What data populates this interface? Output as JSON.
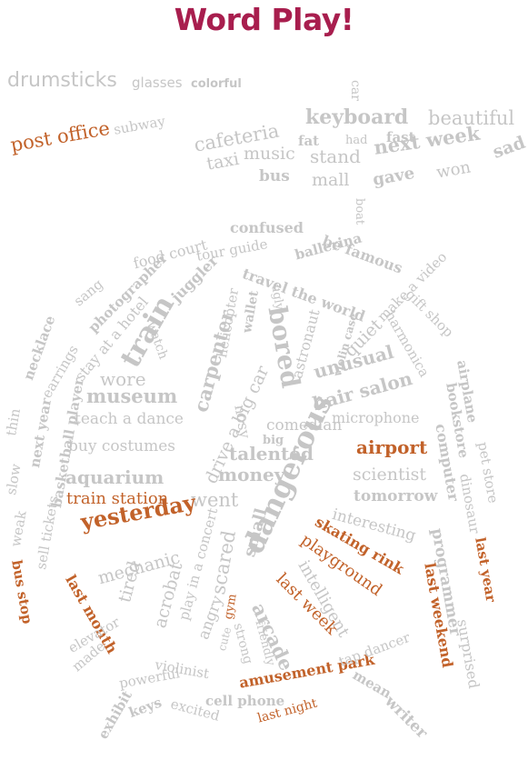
{
  "title": "Word Play!",
  "colors": {
    "title": "#a81e4e",
    "accent": "#c2622a",
    "gray": "#c6c6c6"
  },
  "words": [
    {
      "t": "drumsticks"
    },
    {
      "t": "glasses"
    },
    {
      "t": "colorful"
    },
    {
      "t": "post office"
    },
    {
      "t": "subway"
    },
    {
      "t": "car"
    },
    {
      "t": "keyboard"
    },
    {
      "t": "beautiful"
    },
    {
      "t": "cafeteria"
    },
    {
      "t": "fat"
    },
    {
      "t": "had"
    },
    {
      "t": "fast"
    },
    {
      "t": "music"
    },
    {
      "t": "stand"
    },
    {
      "t": "next week"
    },
    {
      "t": "sad"
    },
    {
      "t": "taxi"
    },
    {
      "t": "bus"
    },
    {
      "t": "mall"
    },
    {
      "t": "gave"
    },
    {
      "t": "won"
    },
    {
      "t": "boat"
    },
    {
      "t": "confused"
    },
    {
      "t": "food court"
    },
    {
      "t": "be famous"
    },
    {
      "t": "tour guide"
    },
    {
      "t": "ballerina"
    },
    {
      "t": "sang"
    },
    {
      "t": "photographer"
    },
    {
      "t": "juggler"
    },
    {
      "t": "travel the world"
    },
    {
      "t": "gift shop"
    },
    {
      "t": "make a video"
    },
    {
      "t": "stay at a hotel"
    },
    {
      "t": "necklace"
    },
    {
      "t": "watch"
    },
    {
      "t": "carpenter"
    },
    {
      "t": "helicopter"
    },
    {
      "t": "wallet"
    },
    {
      "t": "ugly"
    },
    {
      "t": "bored"
    },
    {
      "t": "astronaut"
    },
    {
      "t": "violin case"
    },
    {
      "t": "quiet"
    },
    {
      "t": "harmonica"
    },
    {
      "t": "airplane"
    },
    {
      "t": "train"
    },
    {
      "t": "earrings"
    },
    {
      "t": "wore"
    },
    {
      "t": "drive a big car"
    },
    {
      "t": "unusual"
    },
    {
      "t": "bookstore"
    },
    {
      "t": "museum"
    },
    {
      "t": "hair salon"
    },
    {
      "t": "thin"
    },
    {
      "t": "next year"
    },
    {
      "t": "teach a dance"
    },
    {
      "t": "nosy"
    },
    {
      "t": "comedian"
    },
    {
      "t": "microphone"
    },
    {
      "t": "pet store"
    },
    {
      "t": "basketball player"
    },
    {
      "t": "buy costumes"
    },
    {
      "t": "big"
    },
    {
      "t": "talented"
    },
    {
      "t": "airport"
    },
    {
      "t": "computer"
    },
    {
      "t": "slow"
    },
    {
      "t": "aquarium"
    },
    {
      "t": "money"
    },
    {
      "t": "scientist"
    },
    {
      "t": "dinosaur"
    },
    {
      "t": "went"
    },
    {
      "t": "dangerous"
    },
    {
      "t": "tomorrow"
    },
    {
      "t": "train station"
    },
    {
      "t": "weak"
    },
    {
      "t": "sell tickets"
    },
    {
      "t": "interesting"
    },
    {
      "t": "programmer"
    },
    {
      "t": "yesterday"
    },
    {
      "t": "skating rink"
    },
    {
      "t": "last year"
    },
    {
      "t": "scared"
    },
    {
      "t": "mechanic"
    },
    {
      "t": "small"
    },
    {
      "t": "playground"
    },
    {
      "t": "last weekend"
    },
    {
      "t": "bus stop"
    },
    {
      "t": "play in a concert"
    },
    {
      "t": "intelligent"
    },
    {
      "t": "tired"
    },
    {
      "t": "acrobat"
    },
    {
      "t": "last month"
    },
    {
      "t": "angry"
    },
    {
      "t": "last week"
    },
    {
      "t": "elevator"
    },
    {
      "t": "gym"
    },
    {
      "t": "arcade"
    },
    {
      "t": "friendly"
    },
    {
      "t": "cute"
    },
    {
      "t": "strong"
    },
    {
      "t": "made"
    },
    {
      "t": "amusement park"
    },
    {
      "t": "surprised"
    },
    {
      "t": "violinist"
    },
    {
      "t": "powerful"
    },
    {
      "t": "cell phone"
    },
    {
      "t": "tap dancer"
    },
    {
      "t": "keys"
    },
    {
      "t": "mean"
    },
    {
      "t": "excited"
    },
    {
      "t": "last night"
    },
    {
      "t": "exhibit"
    },
    {
      "t": "writer"
    }
  ]
}
